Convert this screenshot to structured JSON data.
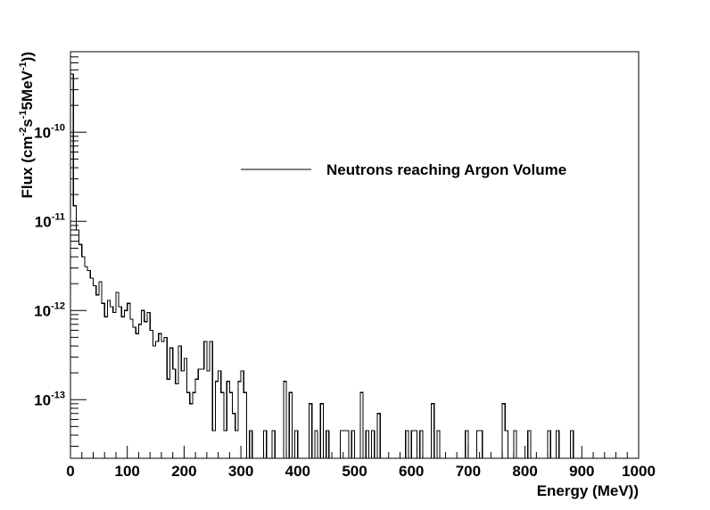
{
  "chart_data": {
    "type": "line",
    "style": "step-histogram",
    "xlabel": "Energy (MeV))",
    "ylabel_parts": {
      "pre": "Flux (cm",
      "sup1": "-2",
      "mid1": "s",
      "sup2": "-1",
      "mid2": "5MeV",
      "sup3": "-1",
      "post": "))"
    },
    "xlim": [
      0,
      1000
    ],
    "ylim": [
      2.2e-14,
      8e-10
    ],
    "yscale": "log",
    "grid": false,
    "legend_position": "top-right",
    "x_ticks": [
      {
        "value": 0,
        "label": "0"
      },
      {
        "value": 100,
        "label": "100"
      },
      {
        "value": 200,
        "label": "200"
      },
      {
        "value": 300,
        "label": "300"
      },
      {
        "value": 400,
        "label": "400"
      },
      {
        "value": 500,
        "label": "500"
      },
      {
        "value": 600,
        "label": "600"
      },
      {
        "value": 700,
        "label": "700"
      },
      {
        "value": 800,
        "label": "800"
      },
      {
        "value": 900,
        "label": "900"
      },
      {
        "value": 1000,
        "label": "1000"
      }
    ],
    "y_ticks": [
      {
        "value": 1e-13,
        "base": "10",
        "exp": "-13"
      },
      {
        "value": 1e-12,
        "base": "10",
        "exp": "-12"
      },
      {
        "value": 1e-11,
        "base": "10",
        "exp": "-11"
      },
      {
        "value": 1e-10,
        "base": "10",
        "exp": "-10"
      }
    ],
    "bin_width": 5,
    "series": [
      {
        "name": "Neutrons reaching Argon Volume",
        "color": "#000000",
        "points": [
          [
            0,
            4.5e-10
          ],
          [
            5,
            1.5e-11
          ],
          [
            10,
            8e-12
          ],
          [
            15,
            5.5e-12
          ],
          [
            20,
            4e-12
          ],
          [
            25,
            3.1e-12
          ],
          [
            30,
            2.8e-12
          ],
          [
            35,
            2.3e-12
          ],
          [
            40,
            1.9e-12
          ],
          [
            45,
            1.5e-12
          ],
          [
            50,
            2.1e-12
          ],
          [
            55,
            1.2e-12
          ],
          [
            60,
            8.5e-13
          ],
          [
            65,
            1.3e-12
          ],
          [
            70,
            1.1e-12
          ],
          [
            75,
            9.5e-13
          ],
          [
            80,
            1.6e-12
          ],
          [
            85,
            1.1e-12
          ],
          [
            90,
            8.5e-13
          ],
          [
            95,
            1e-12
          ],
          [
            100,
            1.2e-12
          ],
          [
            105,
            8e-13
          ],
          [
            110,
            6.5e-13
          ],
          [
            115,
            5.5e-13
          ],
          [
            120,
            7e-13
          ],
          [
            125,
            1e-12
          ],
          [
            130,
            7.5e-13
          ],
          [
            135,
            9.5e-13
          ],
          [
            140,
            6e-13
          ],
          [
            145,
            4e-13
          ],
          [
            150,
            4.5e-13
          ],
          [
            155,
            5.5e-13
          ],
          [
            160,
            4.5e-13
          ],
          [
            165,
            5e-13
          ],
          [
            170,
            1.7e-13
          ],
          [
            175,
            3.8e-13
          ],
          [
            180,
            2.2e-13
          ],
          [
            185,
            1.5e-13
          ],
          [
            190,
            4e-13
          ],
          [
            195,
            2.1e-13
          ],
          [
            200,
            2.9e-13
          ],
          [
            205,
            1.2e-13
          ],
          [
            210,
            9e-14
          ],
          [
            215,
            1.2e-13
          ],
          [
            220,
            1.7e-13
          ],
          [
            225,
            2.2e-13
          ],
          [
            230,
            2.2e-13
          ],
          [
            235,
            4.5e-13
          ],
          [
            240,
            2.1e-13
          ],
          [
            245,
            4.5e-13
          ],
          [
            250,
            4.5e-14
          ],
          [
            255,
            1.6e-13
          ],
          [
            260,
            2.1e-13
          ],
          [
            265,
            1.2e-13
          ],
          [
            270,
            4.5e-14
          ],
          [
            275,
            1.6e-13
          ],
          [
            280,
            1.2e-13
          ],
          [
            285,
            7e-14
          ],
          [
            290,
            4.5e-14
          ],
          [
            295,
            1.6e-13
          ],
          [
            300,
            2.1e-13
          ],
          [
            305,
            1.2e-13
          ],
          [
            310,
            2.2e-14
          ],
          [
            315,
            4.5e-14
          ],
          [
            320,
            2.2e-14
          ],
          [
            325,
            2.2e-14
          ],
          [
            330,
            2.2e-14
          ],
          [
            335,
            2.2e-14
          ],
          [
            340,
            4.5e-14
          ],
          [
            345,
            2.2e-14
          ],
          [
            350,
            2.2e-14
          ],
          [
            355,
            4.5e-14
          ],
          [
            360,
            2.2e-14
          ],
          [
            365,
            2.2e-14
          ],
          [
            370,
            2.2e-14
          ],
          [
            375,
            1.6e-13
          ],
          [
            380,
            2.2e-14
          ],
          [
            385,
            1.2e-13
          ],
          [
            390,
            2.2e-14
          ],
          [
            395,
            4.5e-14
          ],
          [
            400,
            2.2e-14
          ],
          [
            405,
            2.2e-14
          ],
          [
            410,
            2.2e-14
          ],
          [
            415,
            2.2e-14
          ],
          [
            420,
            9e-14
          ],
          [
            425,
            2.2e-14
          ],
          [
            430,
            4.5e-14
          ],
          [
            435,
            2.2e-14
          ],
          [
            440,
            9e-14
          ],
          [
            445,
            2.2e-14
          ],
          [
            450,
            4.5e-14
          ],
          [
            455,
            2.2e-14
          ],
          [
            460,
            2.2e-14
          ],
          [
            465,
            2.2e-14
          ],
          [
            470,
            2.2e-14
          ],
          [
            475,
            4.5e-14
          ],
          [
            480,
            4.5e-14
          ],
          [
            485,
            4.5e-14
          ],
          [
            490,
            2.2e-14
          ],
          [
            495,
            4.5e-14
          ],
          [
            500,
            2.2e-14
          ],
          [
            505,
            2.2e-14
          ],
          [
            510,
            1.2e-13
          ],
          [
            515,
            2.2e-14
          ],
          [
            520,
            4.5e-14
          ],
          [
            525,
            2.2e-14
          ],
          [
            530,
            4.5e-14
          ],
          [
            535,
            2.2e-14
          ],
          [
            540,
            7e-14
          ],
          [
            545,
            2.2e-14
          ],
          [
            550,
            2.2e-14
          ],
          [
            555,
            2.2e-14
          ],
          [
            560,
            2.2e-14
          ],
          [
            565,
            2.2e-14
          ],
          [
            570,
            2.2e-14
          ],
          [
            575,
            2.2e-14
          ],
          [
            580,
            2.2e-14
          ],
          [
            585,
            2.2e-14
          ],
          [
            590,
            4.5e-14
          ],
          [
            595,
            2.2e-14
          ],
          [
            600,
            4.5e-14
          ],
          [
            605,
            4.5e-14
          ],
          [
            610,
            2.2e-14
          ],
          [
            615,
            4.5e-14
          ],
          [
            620,
            2.2e-14
          ],
          [
            625,
            2.2e-14
          ],
          [
            630,
            2.2e-14
          ],
          [
            635,
            9e-14
          ],
          [
            640,
            2.2e-14
          ],
          [
            645,
            4.5e-14
          ],
          [
            650,
            2.2e-14
          ],
          [
            655,
            2.2e-14
          ],
          [
            660,
            2.2e-14
          ],
          [
            665,
            2.2e-14
          ],
          [
            670,
            2.2e-14
          ],
          [
            675,
            2.2e-14
          ],
          [
            680,
            2.2e-14
          ],
          [
            685,
            2.2e-14
          ],
          [
            690,
            2.2e-14
          ],
          [
            695,
            4.5e-14
          ],
          [
            700,
            2.2e-14
          ],
          [
            705,
            2.2e-14
          ],
          [
            710,
            2.2e-14
          ],
          [
            715,
            4.5e-14
          ],
          [
            720,
            4.5e-14
          ],
          [
            725,
            2.2e-14
          ],
          [
            730,
            2.2e-14
          ],
          [
            735,
            2.2e-14
          ],
          [
            740,
            2.2e-14
          ],
          [
            745,
            2.2e-14
          ],
          [
            750,
            2.2e-14
          ],
          [
            755,
            2.2e-14
          ],
          [
            760,
            9e-14
          ],
          [
            765,
            4.5e-14
          ],
          [
            770,
            2.2e-14
          ],
          [
            775,
            2.2e-14
          ],
          [
            780,
            4.5e-14
          ],
          [
            785,
            2.2e-14
          ],
          [
            790,
            2.2e-14
          ],
          [
            795,
            2.2e-14
          ],
          [
            800,
            2.2e-14
          ],
          [
            805,
            4.5e-14
          ],
          [
            810,
            2.2e-14
          ],
          [
            815,
            2.2e-14
          ],
          [
            820,
            2.2e-14
          ],
          [
            825,
            2.2e-14
          ],
          [
            830,
            2.2e-14
          ],
          [
            835,
            2.2e-14
          ],
          [
            840,
            4.5e-14
          ],
          [
            845,
            2.2e-14
          ],
          [
            850,
            2.2e-14
          ],
          [
            855,
            4.5e-14
          ],
          [
            860,
            2.2e-14
          ],
          [
            865,
            2.2e-14
          ],
          [
            870,
            2.2e-14
          ],
          [
            875,
            2.2e-14
          ],
          [
            880,
            4.5e-14
          ],
          [
            885,
            2.2e-14
          ],
          [
            890,
            2.2e-14
          ],
          [
            895,
            2.2e-14
          ]
        ]
      }
    ]
  }
}
